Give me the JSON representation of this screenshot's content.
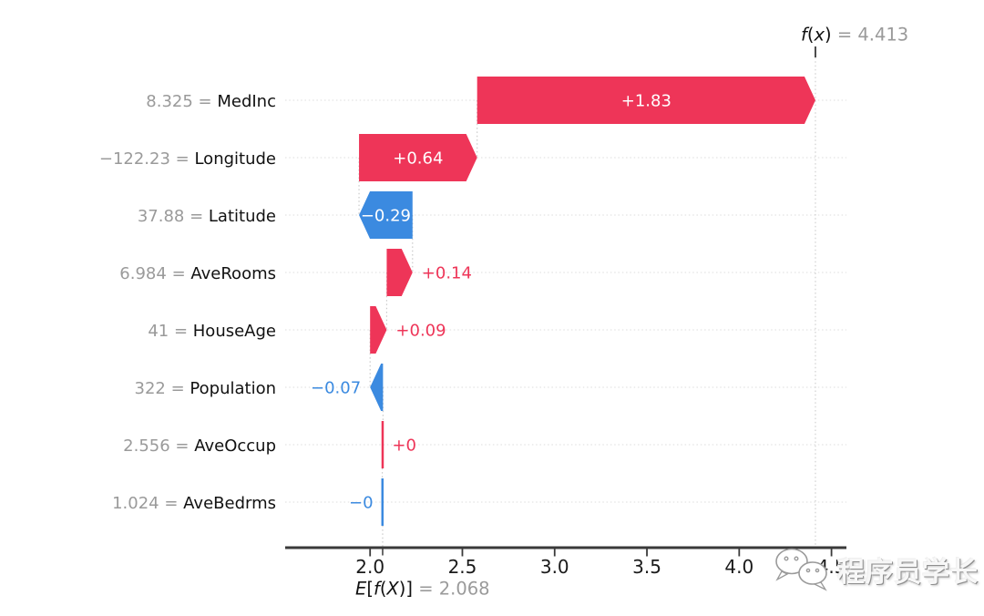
{
  "watermark": {
    "icon": "wechat-icon",
    "text": "程序员学长"
  },
  "chart_data": {
    "type": "bar",
    "subtype": "shap-waterfall",
    "fx_label": "f(x)",
    "fx_value_label": "4.413",
    "fx": 4.413,
    "base_label": "E[f(X)]",
    "base_value_label": "2.068",
    "base": 2.068,
    "xticks": [
      2.0,
      2.5,
      3.0,
      3.5,
      4.0,
      4.5
    ],
    "xtick_labels": [
      "2.0",
      "2.5",
      "3.0",
      "3.5",
      "4.0",
      "4.5"
    ],
    "xlim": [
      1.54,
      4.58
    ],
    "grid": "horizontal-dotted",
    "colors": {
      "positive": "#ee3558",
      "negative": "#3b8ae0",
      "grid": "#dcdcdc",
      "connector": "#c9c9c9",
      "dashed_line": "#cfcfcf",
      "axis": "#3a3a3a",
      "muted_text": "#9a9a9a",
      "text": "#111111",
      "bar_label_inside": "#ffffff"
    },
    "features": [
      {
        "name": "MedInc",
        "value_label": "8.325",
        "shap": 1.83,
        "shap_label": "+1.83"
      },
      {
        "name": "Longitude",
        "value_label": "−122.23",
        "shap": 0.64,
        "shap_label": "+0.64"
      },
      {
        "name": "Latitude",
        "value_label": "37.88",
        "shap": -0.29,
        "shap_label": "−0.29"
      },
      {
        "name": "AveRooms",
        "value_label": "6.984",
        "shap": 0.14,
        "shap_label": "+0.14"
      },
      {
        "name": "HouseAge",
        "value_label": "41",
        "shap": 0.09,
        "shap_label": "+0.09"
      },
      {
        "name": "Population",
        "value_label": "322",
        "shap": -0.07,
        "shap_label": "−0.07"
      },
      {
        "name": "AveOccup",
        "value_label": "2.556",
        "shap": 0.004,
        "shap_label": "+0"
      },
      {
        "name": "AveBedrms",
        "value_label": "1.024",
        "shap": -0.002,
        "shap_label": "−0"
      }
    ]
  }
}
